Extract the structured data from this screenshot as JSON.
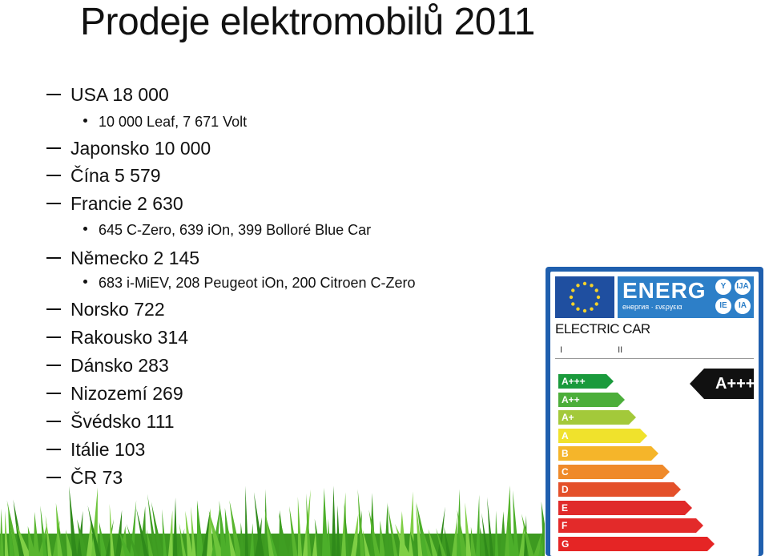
{
  "title": "Prodeje elektromobilů 2011",
  "items": [
    {
      "level": 1,
      "text": "USA 18 000"
    },
    {
      "level": 2,
      "text": "10 000 Leaf, 7 671 Volt"
    },
    {
      "level": 1,
      "text": "Japonsko 10 000"
    },
    {
      "level": 1,
      "text": "Čína 5 579"
    },
    {
      "level": 1,
      "text": "Francie 2 630"
    },
    {
      "level": 2,
      "text": "645 C-Zero, 639 iOn, 399  Bolloré Blue Car"
    },
    {
      "level": 1,
      "text": "Německo 2 145"
    },
    {
      "level": 2,
      "text": "683 i-MiEV, 208 Peugeot iOn, 200 Citroen C-Zero"
    },
    {
      "level": 1,
      "text": "Norsko 722"
    },
    {
      "level": 1,
      "text": "Rakousko 314"
    },
    {
      "level": 1,
      "text": "Dánsko 283"
    },
    {
      "level": 1,
      "text": "Nizozemí 269"
    },
    {
      "level": 1,
      "text": "Švédsko 111"
    },
    {
      "level": 1,
      "text": "Itálie 103"
    },
    {
      "level": 1,
      "text": "ČR 73"
    }
  ],
  "energy_label": {
    "header_word": "ENERG",
    "header_sub": "енергия · ενεργεια",
    "languages": [
      "Y",
      "IJA",
      "IE",
      "IA"
    ],
    "product": "ELECTRIC CAR",
    "roman": [
      "I",
      "II"
    ],
    "classes": [
      {
        "label": "A+++",
        "color": "#1a9a3c"
      },
      {
        "label": "A++",
        "color": "#4cae3a"
      },
      {
        "label": "A+",
        "color": "#a3c93a"
      },
      {
        "label": "A",
        "color": "#f0e22c"
      },
      {
        "label": "B",
        "color": "#f5b52a"
      },
      {
        "label": "C",
        "color": "#ef8a2a"
      },
      {
        "label": "D",
        "color": "#e4502a"
      },
      {
        "label": "E",
        "color": "#e02a2a"
      },
      {
        "label": "F",
        "color": "#e32a2a"
      },
      {
        "label": "G",
        "color": "#e52525"
      }
    ],
    "rating": "A+++"
  },
  "colors": {
    "label_border": "#1f5fae",
    "grass": "#4caf2a"
  }
}
